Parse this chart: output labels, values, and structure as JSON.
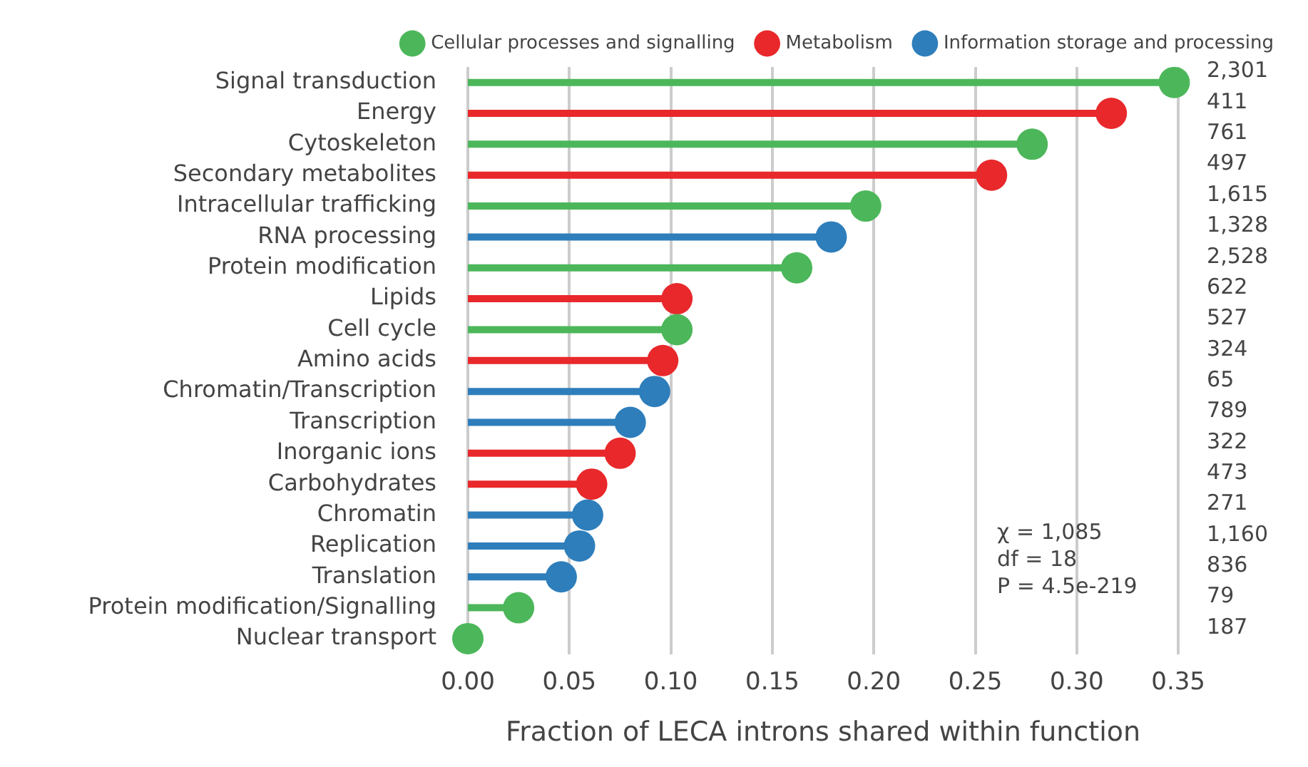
{
  "chart_data": {
    "type": "lollipop",
    "orientation": "horizontal",
    "xlabel": "Fraction of LECA introns shared within function",
    "categories": [
      "Signal transduction",
      "Energy",
      "Cytoskeleton",
      "Secondary metabolites",
      "Intracellular trafficking",
      "RNA processing",
      "Protein modification",
      "Lipids",
      "Cell cycle",
      "Amino acids",
      "Chromatin/Transcription",
      "Transcription",
      "Inorganic ions",
      "Carbohydrates",
      "Chromatin",
      "Replication",
      "Translation",
      "Protein modification/Signalling",
      "Nuclear transport"
    ],
    "series": [
      {
        "name": "Cellular processes and signalling",
        "color": "#4cb75a",
        "values": [
          0.348,
          null,
          0.278,
          null,
          0.196,
          null,
          0.162,
          null,
          0.103,
          null,
          null,
          null,
          null,
          null,
          null,
          null,
          null,
          0.025,
          0.0
        ]
      },
      {
        "name": "Metabolism",
        "color": "#e8282b",
        "values": [
          null,
          0.317,
          null,
          0.258,
          null,
          null,
          null,
          0.103,
          null,
          0.096,
          null,
          null,
          0.075,
          0.061,
          null,
          null,
          null,
          null,
          null
        ]
      },
      {
        "name": "Information storage and processing",
        "color": "#2e7ebb",
        "values": [
          null,
          null,
          null,
          null,
          null,
          0.179,
          null,
          null,
          null,
          null,
          0.092,
          0.08,
          null,
          null,
          0.059,
          0.055,
          0.046,
          null,
          null
        ]
      }
    ],
    "value_labels": [
      "2,301",
      "411",
      "761",
      "497",
      "1,615",
      "1,328",
      "2,528",
      "622",
      "527",
      "324",
      "65",
      "789",
      "322",
      "473",
      "271",
      "1,160",
      "836",
      "79",
      "187"
    ],
    "annotations": [
      "χ = 1,085",
      "df = 18",
      "P = 4.5e-219"
    ],
    "xlim": [
      0,
      0.35
    ],
    "xticks": [
      {
        "value": 0,
        "label": "0.00"
      },
      {
        "value": 0.05,
        "label": "0.05"
      },
      {
        "value": 0.1,
        "label": "0.10"
      },
      {
        "value": 0.15,
        "label": "0.15"
      },
      {
        "value": 0.2,
        "label": "0.20"
      },
      {
        "value": 0.25,
        "label": "0.25"
      },
      {
        "value": 0.3,
        "label": "0.30"
      },
      {
        "value": 0.35,
        "label": "0.35"
      }
    ],
    "grid": "x",
    "legend": "top right",
    "marker": "circle"
  }
}
